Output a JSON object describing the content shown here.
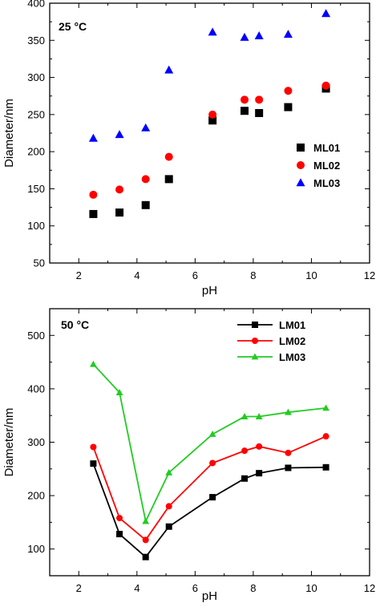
{
  "chart_data": [
    {
      "type": "scatter",
      "title": "",
      "panel_label": "25 °C",
      "xlabel": "pH",
      "ylabel": "Diameter/nm",
      "xlim": [
        1,
        12
      ],
      "ylim": [
        50,
        400
      ],
      "xticks": [
        "2",
        "4",
        "6",
        "8",
        "10",
        "12"
      ],
      "yticks": [
        "50",
        "100",
        "150",
        "200",
        "250",
        "300",
        "350",
        "400"
      ],
      "grid": false,
      "legend_position": "right-middle",
      "series": [
        {
          "name": "ML01",
          "marker": "square",
          "color": "#000000",
          "x": [
            2.5,
            3.4,
            4.3,
            5.1,
            6.6,
            7.7,
            8.2,
            9.2,
            10.5
          ],
          "y": [
            116,
            118,
            128,
            163,
            242,
            255,
            252,
            260,
            285
          ]
        },
        {
          "name": "ML02",
          "marker": "circle",
          "color": "#ff0000",
          "x": [
            2.5,
            3.4,
            4.3,
            5.1,
            6.6,
            7.7,
            8.2,
            9.2,
            10.5
          ],
          "y": [
            142,
            149,
            163,
            193,
            250,
            270,
            270,
            282,
            289
          ]
        },
        {
          "name": "ML03",
          "marker": "triangle",
          "color": "#0000ff",
          "x": [
            2.5,
            3.4,
            4.3,
            5.1,
            6.6,
            7.7,
            8.2,
            9.2,
            10.5
          ],
          "y": [
            218,
            223,
            232,
            310,
            361,
            354,
            356,
            358,
            386
          ]
        }
      ]
    },
    {
      "type": "line",
      "title": "",
      "panel_label": "50 °C",
      "xlabel": "pH",
      "ylabel": "Diameter/nm",
      "xlim": [
        1,
        12
      ],
      "ylim": [
        50,
        550
      ],
      "xticks": [
        "2",
        "4",
        "6",
        "8",
        "10",
        "12"
      ],
      "yticks": [
        "100",
        "200",
        "300",
        "400",
        "500"
      ],
      "grid": false,
      "legend_position": "top-center",
      "series": [
        {
          "name": "LM01",
          "marker": "square",
          "color": "#000000",
          "x": [
            2.5,
            3.4,
            4.3,
            5.1,
            6.6,
            7.7,
            8.2,
            9.2,
            10.5
          ],
          "y": [
            260,
            128,
            85,
            142,
            197,
            232,
            242,
            252,
            253
          ]
        },
        {
          "name": "LM02",
          "marker": "circle",
          "color": "#ff0000",
          "x": [
            2.5,
            3.4,
            4.3,
            5.1,
            6.6,
            7.7,
            8.2,
            9.2,
            10.5
          ],
          "y": [
            291,
            158,
            117,
            180,
            261,
            284,
            292,
            280,
            311
          ]
        },
        {
          "name": "LM03",
          "marker": "triangle",
          "color": "#22cc22",
          "x": [
            2.5,
            3.4,
            4.3,
            5.1,
            6.6,
            7.7,
            8.2,
            9.2,
            10.5
          ],
          "y": [
            446,
            393,
            152,
            243,
            315,
            348,
            348,
            356,
            364
          ]
        }
      ]
    }
  ]
}
